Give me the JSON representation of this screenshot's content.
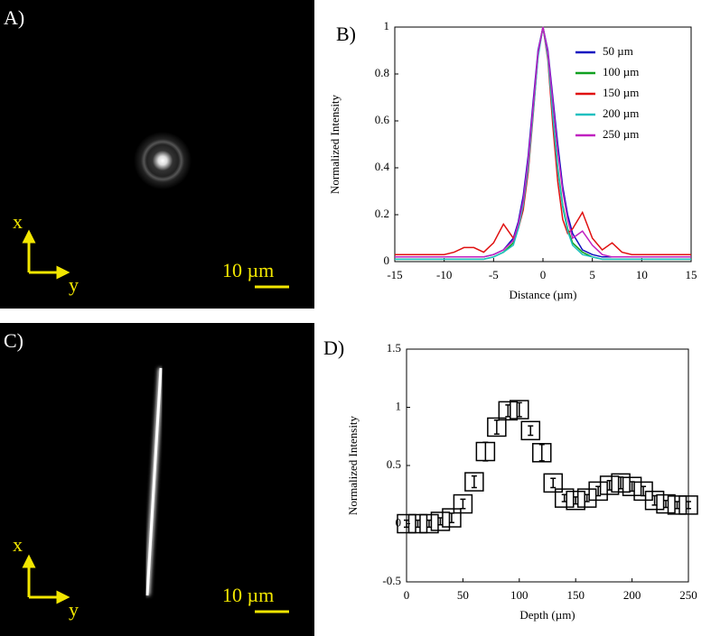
{
  "images": [
    {
      "label": "A)",
      "scale_bar": "10 µm",
      "axis_x": "x",
      "axis_y": "y"
    },
    {
      "label": "C)",
      "scale_bar": "10 µm",
      "axis_x": "x",
      "axis_y": "y"
    }
  ],
  "chart_data": [
    {
      "type": "line",
      "panel_label": "B)",
      "x_label": "Distance (µm)",
      "y_label": "Normalized Intensity",
      "xlim": [
        -15,
        15
      ],
      "xticks": [
        -15,
        -10,
        -5,
        0,
        5,
        10,
        15
      ],
      "ylim": [
        0,
        1
      ],
      "yticks": [
        0,
        0.2,
        0.4,
        0.6,
        0.8,
        1
      ],
      "legend": "upper right",
      "x": [
        -15,
        -14,
        -13,
        -12,
        -11,
        -10,
        -9,
        -8,
        -7,
        -6,
        -5,
        -4,
        -3,
        -2.5,
        -2,
        -1.5,
        -1,
        -0.5,
        0,
        0.5,
        1,
        1.5,
        2,
        2.5,
        3,
        4,
        5,
        6,
        7,
        8,
        9,
        10,
        11,
        12,
        13,
        14,
        15
      ],
      "series": [
        {
          "name": "50 µm",
          "color": "#1010c0",
          "values": [
            0.02,
            0.02,
            0.02,
            0.02,
            0.02,
            0.02,
            0.02,
            0.02,
            0.02,
            0.02,
            0.03,
            0.05,
            0.1,
            0.17,
            0.28,
            0.45,
            0.68,
            0.9,
            1,
            0.9,
            0.7,
            0.5,
            0.32,
            0.2,
            0.12,
            0.05,
            0.03,
            0.02,
            0.02,
            0.02,
            0.02,
            0.02,
            0.02,
            0.02,
            0.02,
            0.02,
            0.02
          ]
        },
        {
          "name": "100 µm",
          "color": "#10a020",
          "values": [
            0.01,
            0.01,
            0.01,
            0.01,
            0.01,
            0.01,
            0.01,
            0.01,
            0.01,
            0.01,
            0.02,
            0.04,
            0.08,
            0.15,
            0.25,
            0.42,
            0.65,
            0.88,
            1,
            0.88,
            0.63,
            0.4,
            0.24,
            0.14,
            0.08,
            0.04,
            0.02,
            0.01,
            0.01,
            0.01,
            0.01,
            0.01,
            0.01,
            0.01,
            0.01,
            0.01,
            0.01
          ]
        },
        {
          "name": "150 µm",
          "color": "#e01010",
          "values": [
            0.03,
            0.03,
            0.03,
            0.03,
            0.03,
            0.03,
            0.04,
            0.06,
            0.06,
            0.04,
            0.08,
            0.16,
            0.1,
            0.14,
            0.22,
            0.38,
            0.62,
            0.88,
            1,
            0.86,
            0.58,
            0.34,
            0.18,
            0.12,
            0.14,
            0.21,
            0.1,
            0.05,
            0.08,
            0.04,
            0.03,
            0.03,
            0.03,
            0.03,
            0.03,
            0.03,
            0.03
          ]
        },
        {
          "name": "200 µm",
          "color": "#20c0c0",
          "values": [
            0.01,
            0.01,
            0.01,
            0.01,
            0.01,
            0.01,
            0.01,
            0.01,
            0.01,
            0.01,
            0.02,
            0.04,
            0.07,
            0.14,
            0.24,
            0.4,
            0.63,
            0.87,
            1,
            0.87,
            0.62,
            0.39,
            0.23,
            0.13,
            0.07,
            0.03,
            0.02,
            0.01,
            0.01,
            0.01,
            0.01,
            0.01,
            0.01,
            0.01,
            0.01,
            0.01,
            0.01
          ]
        },
        {
          "name": "250 µm",
          "color": "#c020c0",
          "values": [
            0.02,
            0.02,
            0.02,
            0.02,
            0.02,
            0.02,
            0.02,
            0.02,
            0.02,
            0.02,
            0.03,
            0.05,
            0.09,
            0.16,
            0.26,
            0.43,
            0.66,
            0.89,
            1,
            0.89,
            0.68,
            0.47,
            0.3,
            0.18,
            0.1,
            0.13,
            0.07,
            0.03,
            0.02,
            0.02,
            0.02,
            0.02,
            0.02,
            0.02,
            0.02,
            0.02,
            0.02
          ]
        }
      ]
    },
    {
      "type": "errorbar",
      "panel_label": "D)",
      "x_label": "Depth (µm)",
      "y_label": "Normalized Intensity",
      "xlim": [
        0,
        250
      ],
      "xticks": [
        0,
        50,
        100,
        150,
        200,
        250
      ],
      "ylim": [
        -0.5,
        1.5
      ],
      "yticks": [
        -0.5,
        0,
        0.5,
        1,
        1.5
      ],
      "color": "#000000",
      "x": [
        0,
        10,
        20,
        30,
        40,
        50,
        60,
        70,
        80,
        90,
        100,
        110,
        120,
        130,
        140,
        150,
        160,
        170,
        180,
        190,
        200,
        210,
        220,
        230,
        240,
        250
      ],
      "values": [
        0,
        0,
        0,
        0.02,
        0.05,
        0.17,
        0.36,
        0.62,
        0.83,
        0.97,
        0.98,
        0.8,
        0.61,
        0.35,
        0.22,
        0.2,
        0.22,
        0.28,
        0.33,
        0.35,
        0.32,
        0.28,
        0.2,
        0.17,
        0.16,
        0.16
      ],
      "errors": [
        0.03,
        0.03,
        0.03,
        0.03,
        0.04,
        0.04,
        0.05,
        0.08,
        0.06,
        0.05,
        0.06,
        0.04,
        0.07,
        0.04,
        0.03,
        0.03,
        0.03,
        0.04,
        0.04,
        0.05,
        0.04,
        0.04,
        0.04,
        0.03,
        0.03,
        0.03
      ]
    }
  ]
}
